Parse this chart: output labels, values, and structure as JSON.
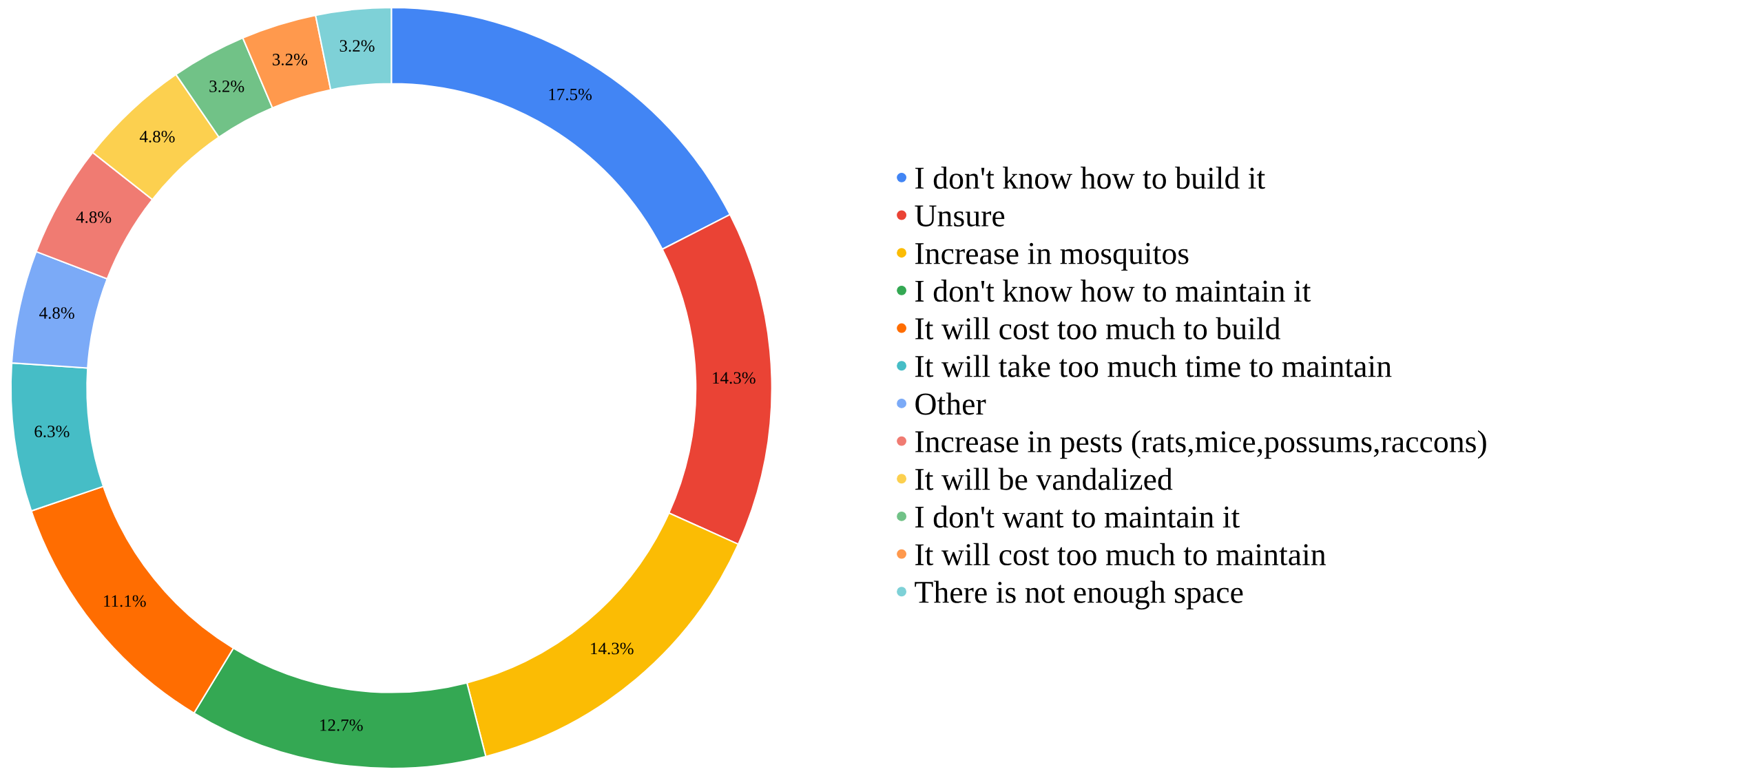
{
  "chart_data": {
    "type": "donut",
    "categories": [
      "I don't know how to build it",
      "Unsure",
      "Increase in mosquitos",
      "I don't know how to maintain it",
      "It will cost too much to build",
      "It will take too much time to maintain",
      "Other",
      "Increase in pests (rats,mice,possums,raccons)",
      "It will be vandalized",
      "I don't want to maintain it",
      "It will cost too much to maintain",
      "There is not enough space"
    ],
    "values": [
      17.5,
      14.3,
      14.3,
      12.7,
      11.1,
      6.3,
      4.8,
      4.8,
      4.8,
      3.2,
      3.2,
      3.2
    ],
    "value_labels": [
      "17.5%",
      "14.3%",
      "14.3%",
      "12.7%",
      "11.1%",
      "6.3%",
      "4.8%",
      "4.8%",
      "4.8%",
      "3.2%",
      "3.2%",
      "3.2%"
    ],
    "colors": [
      "#4285f4",
      "#ea4335",
      "#fbbc04",
      "#34a853",
      "#ff6d01",
      "#46bdc6",
      "#7baaf7",
      "#f07b72",
      "#fcd04f",
      "#71c287",
      "#ff994d",
      "#7ed1d7"
    ],
    "legend": "right"
  }
}
